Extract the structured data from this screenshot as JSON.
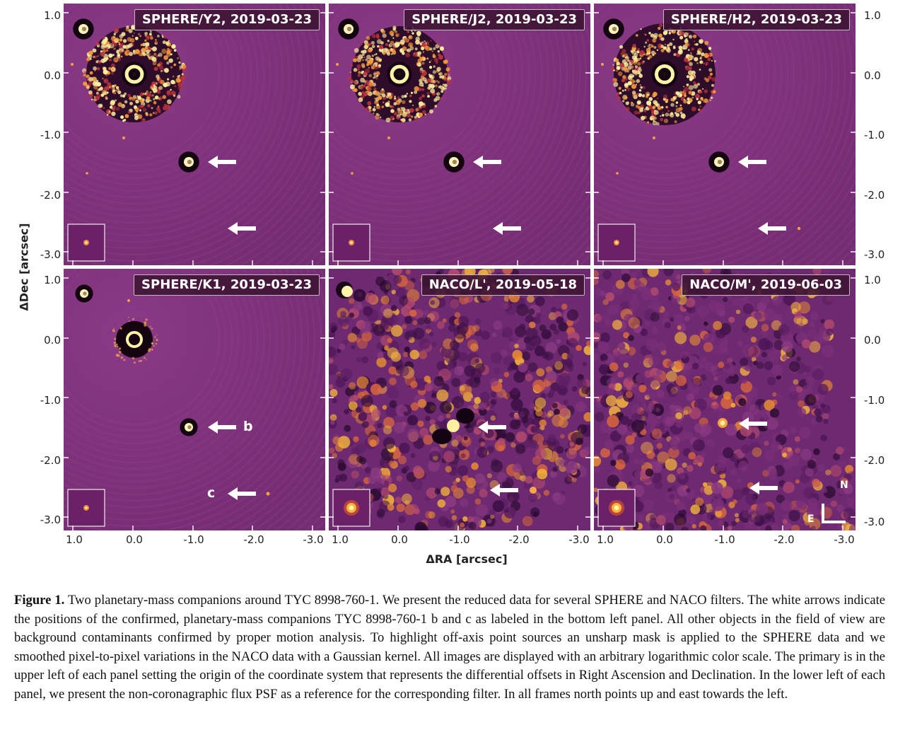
{
  "figure": {
    "panels": [
      {
        "label": "SPHERE/Y2, 2019-03-23",
        "kind": "sphere"
      },
      {
        "label": "SPHERE/J2, 2019-03-23",
        "kind": "sphere"
      },
      {
        "label": "SPHERE/H2, 2019-03-23",
        "kind": "sphere"
      },
      {
        "label": "SPHERE/K1, 2019-03-23",
        "kind": "sphereK"
      },
      {
        "label": "NACO/L', 2019-05-18",
        "kind": "naco"
      },
      {
        "label": "NACO/M', 2019-06-03",
        "kind": "naco"
      }
    ],
    "y_ticks": [
      "1.0",
      "0.0",
      "-1.0",
      "-2.0",
      "-3.0"
    ],
    "x_ticks": [
      "1.0",
      "0.0",
      "-1.0",
      "-2.0",
      "-3.0"
    ],
    "xlabel": "ΔRA [arcsec]",
    "ylabel": "ΔDec [arcsec]",
    "companion_b_label": "b",
    "companion_c_label": "c",
    "compass": {
      "north": "N",
      "east": "E"
    },
    "colors": {
      "background": "#7a2f78",
      "bright": "#fff3a8",
      "dark": "#120412",
      "arrow": "#ffffff"
    }
  },
  "caption": {
    "head": "Figure 1.",
    "text": "Two planetary-mass companions around TYC 8998-760-1. We present the reduced data for several SPHERE and NACO filters. The white arrows indicate the positions of the confirmed, planetary-mass companions TYC 8998-760-1 b and c as labeled in the bottom left panel. All other objects in the field of view are background contaminants confirmed by proper motion analysis. To highlight off-axis point sources an unsharp mask is applied to the SPHERE data and we smoothed pixel-to-pixel variations in the NACO data with a Gaussian kernel. All images are displayed with an arbitrary logarithmic color scale. The primary is in the upper left of each panel setting the origin of the coordinate system that represents the differential offsets in Right Ascension and Declination. In the lower left of each panel, we present the non-coronagraphic flux PSF as a reference for the corresponding filter. In all frames north points up and east towards the left."
  }
}
